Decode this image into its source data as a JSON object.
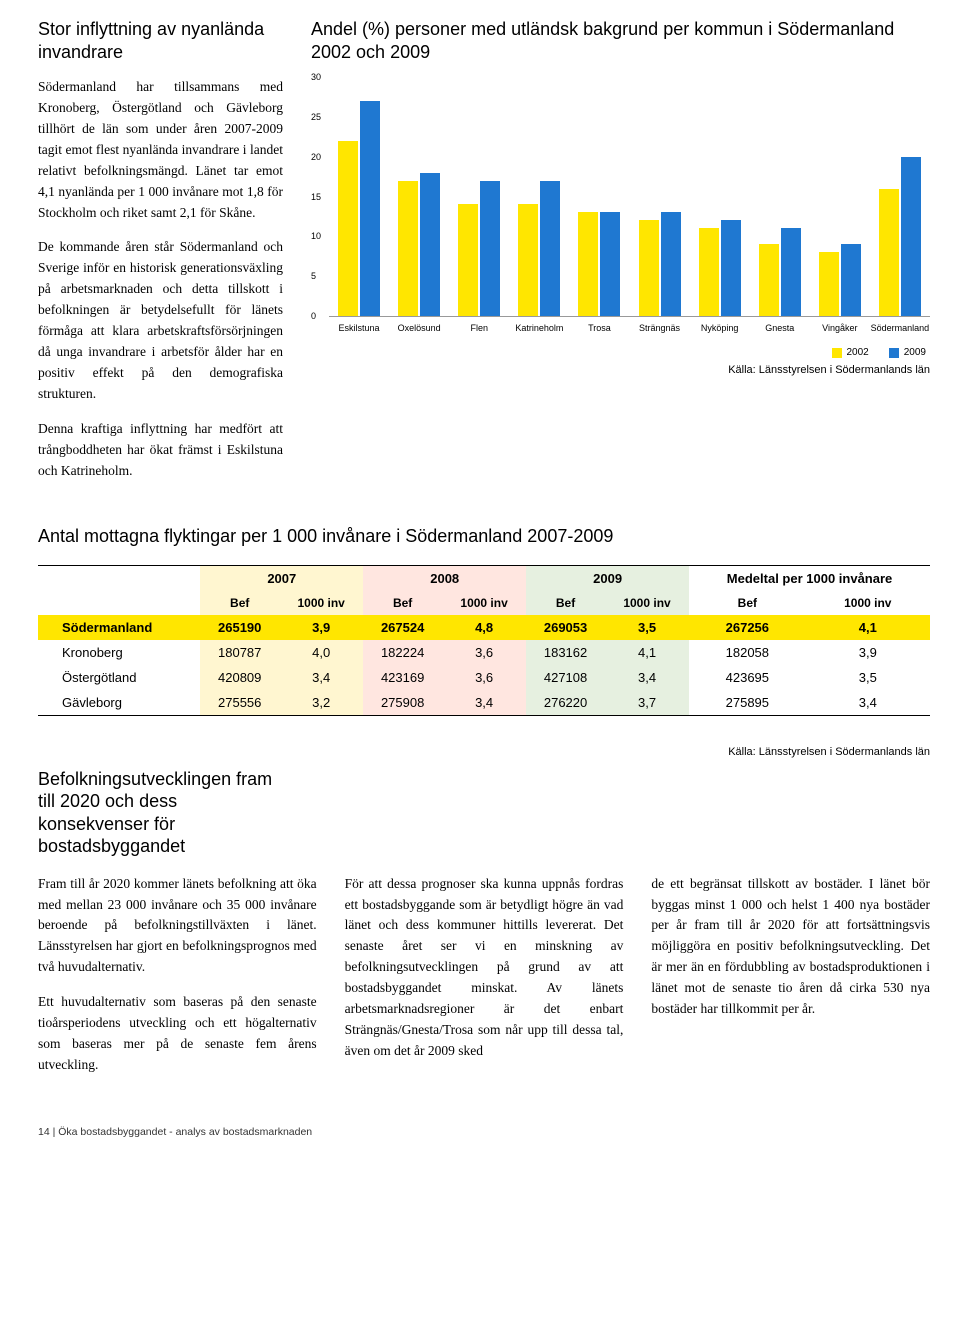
{
  "top": {
    "left_heading": "Stor inflyttning av nyanlända invandrare",
    "p1": "Södermanland har tillsammans med Kronoberg, Östergötland och Gävleborg tillhört de län som under åren 2007-2009 tagit emot flest nyanlända invandrare i landet relativt befolkningsmängd. Länet tar emot 4,1 nyanlända per 1 000 invånare mot 1,8 för Stockholm och riket samt 2,1 för Skåne.",
    "p2": "De kommande åren står Södermanland och Sverige inför en historisk generationsväxling på arbetsmarknaden och detta tillskott i befolkningen är betydelsefullt för länets förmåga att klara arbetskraftsförsörjningen då unga invandrare i arbetsför ålder har en positiv effekt på den demografiska strukturen.",
    "p3": "Denna kraftiga inflyttning har medfört att trångboddheten har ökat främst i Eskilstuna och Katrineholm.",
    "chart_title": "Andel (%) personer med utländsk bakgrund per kommun i Södermanland 2002 och 2009"
  },
  "chart": {
    "ymax": 30,
    "yticks": [
      0,
      5,
      10,
      15,
      20,
      25,
      30
    ],
    "categories": [
      "Eskilstuna",
      "Oxelösund",
      "Flen",
      "Katrineholm",
      "Trosa",
      "Strängnäs",
      "Nyköping",
      "Gnesta",
      "Vingåker",
      "Södermanland"
    ],
    "series": [
      {
        "name": "2002",
        "color": "#ffe600",
        "values": [
          22,
          17,
          14,
          14,
          13,
          12,
          11,
          9,
          8,
          16
        ]
      },
      {
        "name": "2009",
        "color": "#1f78d1",
        "values": [
          27,
          18,
          17,
          17,
          13,
          13,
          12,
          11,
          9,
          20
        ]
      }
    ],
    "source": "Källa: Länsstyrelsen i Södermanlands län",
    "grid_color": "#eeeeee"
  },
  "table": {
    "title": "Antal mottagna flyktingar per 1 000 invånare i Södermanland 2007-2009",
    "years": [
      "2007",
      "2008",
      "2009"
    ],
    "avg_header": "Medeltal per 1000 invånare",
    "sub_bef": "Bef",
    "sub_inv": "1000 inv",
    "year_colors": {
      "2007": "#fff6d0",
      "2008": "#ffe6e0",
      "2009": "#e6f0e0"
    },
    "highlight_color": "#ffe600",
    "rows": [
      {
        "label": "Södermanland",
        "highlight": true,
        "cells": [
          "265190",
          "3,9",
          "267524",
          "4,8",
          "269053",
          "3,5",
          "267256",
          "4,1"
        ]
      },
      {
        "label": "Kronoberg",
        "cells": [
          "180787",
          "4,0",
          "182224",
          "3,6",
          "183162",
          "4,1",
          "182058",
          "3,9"
        ]
      },
      {
        "label": "Östergötland",
        "cells": [
          "420809",
          "3,4",
          "423169",
          "3,6",
          "427108",
          "3,4",
          "423695",
          "3,5"
        ]
      },
      {
        "label": "Gävleborg",
        "cells": [
          "275556",
          "3,2",
          "275908",
          "3,4",
          "276220",
          "3,7",
          "275895",
          "3,4"
        ]
      }
    ],
    "source": "Källa: Länsstyrelsen i Södermanlands län"
  },
  "bottom": {
    "heading": "Befolkningsutvecklingen fram till 2020 och dess konsekvenser för bostadsbyggandet",
    "c1p1": "Fram till år 2020 kommer länets befolkning att öka med mellan 23 000 invånare och 35 000 invånare beroende på befolkningstillväxten i länet. Länsstyrelsen har gjort en befolkningsprognos med två huvudalternativ.",
    "c1p2": "Ett huvudalternativ som baseras på den senaste tioårsperiodens utveckling och ett högalternativ som baseras mer på de senaste fem årens utveckling.",
    "c2": "För att dessa prognoser ska kunna uppnås fordras ett bostadsbyggande som är betydligt högre än vad länet och dess kommuner hittills levererat. Det senaste året ser vi en minskning av befolkningsutvecklingen på grund av att bostadsbyggandet minskat. Av länets arbetsmarknadsregioner är det enbart Strängnäs/Gnesta/Trosa som når upp till dessa tal, även om det år 2009 sked",
    "c3": "de ett begränsat tillskott av bostäder. I länet bör byggas minst 1 000 och helst 1 400 nya bostäder per år fram till år 2020 för att fortsättningsvis möjliggöra en positiv befolkningsutveckling. Det är mer än en fördubbling av bostadsproduktionen i länet mot de senaste tio åren då cirka 530 nya bostäder har tillkommit per år."
  },
  "footer": "14  |  Öka bostadsbyggandet - analys av bostadsmarknaden"
}
